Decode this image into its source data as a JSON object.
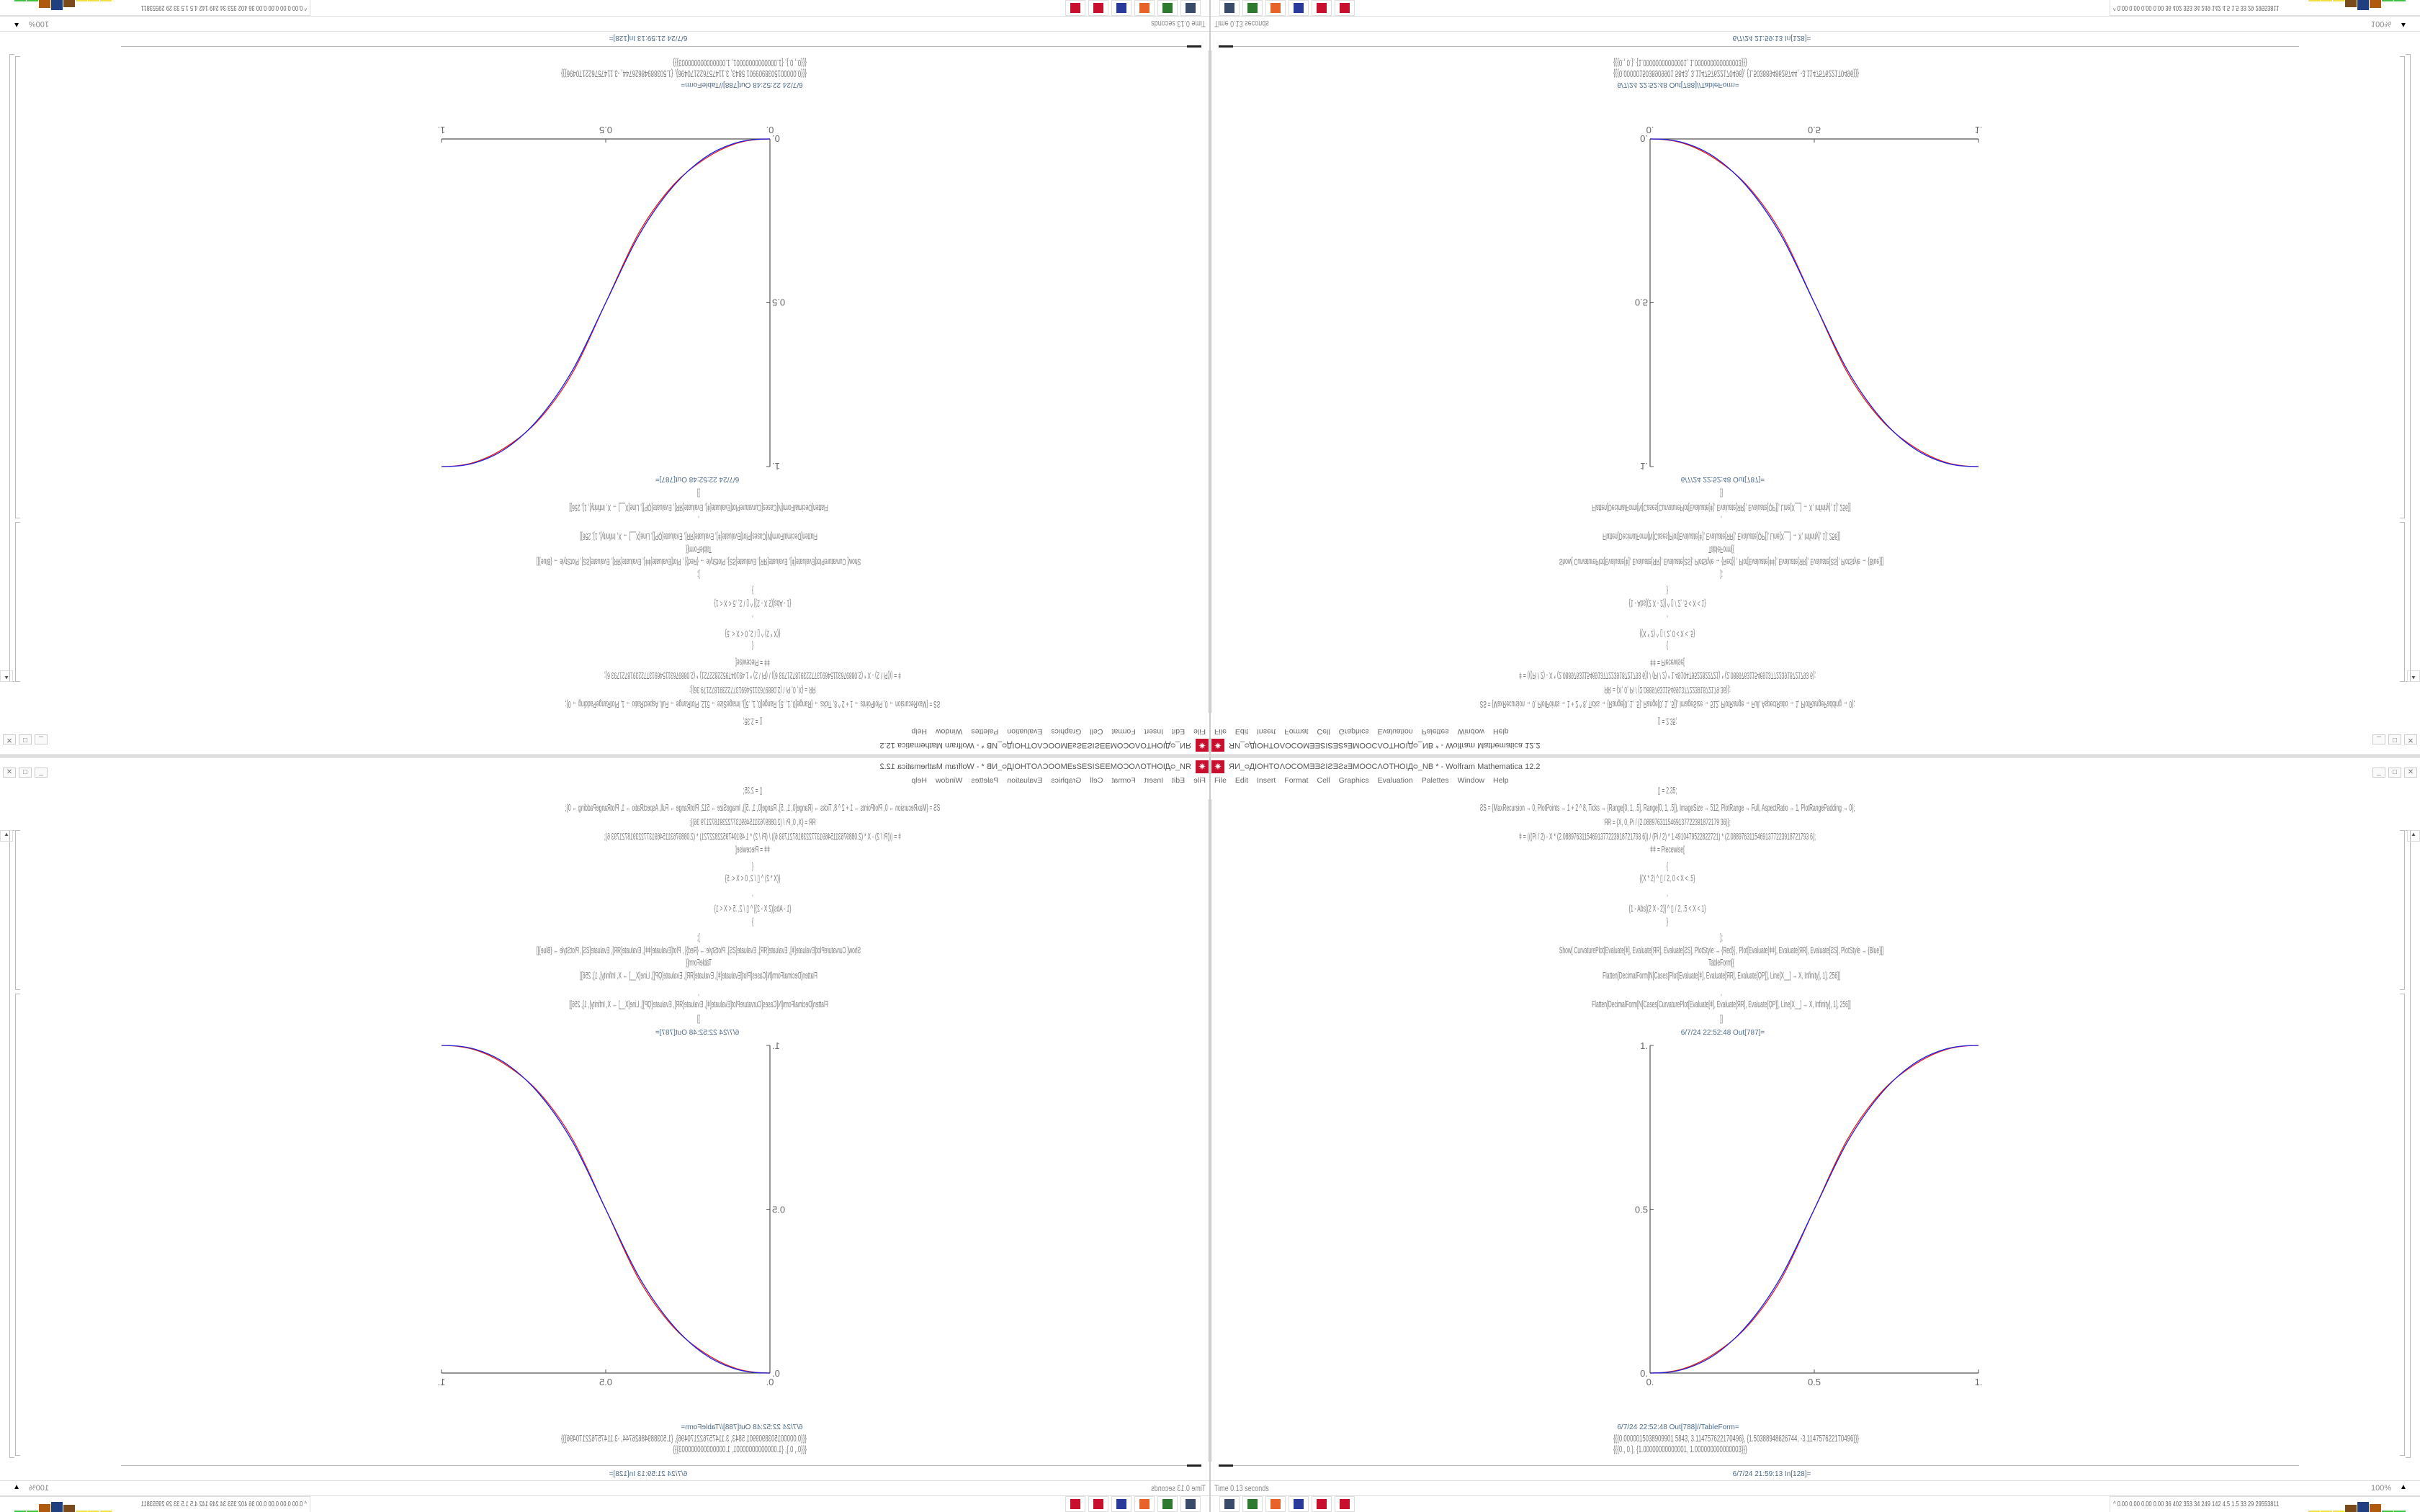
{
  "window": {
    "title": "ЯИ_ᴑДIOHTOΛOCOMƎƎƧIƧƎƧƨƎMOOCΛOTHOIДᴑ_NB * - Wolfram Mathematica 12.2",
    "icon": "mathematica-icon",
    "controls": {
      "minimize": "_",
      "maximize": "□",
      "close": "✕"
    }
  },
  "menu": [
    "File",
    "Edit",
    "Insert",
    "Format",
    "Cell",
    "Graphics",
    "Evaluation",
    "Palettes",
    "Window",
    "Help"
  ],
  "code_lines": [
    "⁠▯ = 2.35;",
    "ƧS = {MaxRecursion → 0, PlotPoints → 1 + 2 ^ 8, Ticks → {Range[0, 1, .5], Range[0, 1, .5]}, ImageSize → 512, PlotRange → Full, AspectRatio → 1, PlotRangePadding → 0};",
    "ЯR = {X, 0, Pi / (2.0889763115469137722391872179 36)};",
    "ǂ = (((Pi / 2) - X * (2.08897631154691377223918721793 6)) / (Pi / 2) * 1.4910479522822721) * (2.08897631154691377223918721793 6);",
    "ǂǂ = Piecewise[",
    "{",
    "{(X * 2) ^ ▯ / 2, 0 < X < .5}",
    ",",
    "{1 - Abs[(2 X - 2)] ^ ▯ / 2, .5 < X < 1}",
    "}",
    "];",
    "Show[   CurvaturePlot[Evaluate[ǂ], Evaluate[ЯR], Evaluate[ƧS], PlotStyle → {Red}]   ,   Plot[Evaluate[ǂǂ], Evaluate[ЯR], Evaluate[ƧS],  PlotStyle → {Blue}]]",
    "TableForm[{",
    "Flatten[DecimalForm[N[Cases[Plot[Evaluate[ǂ], Evaluate[ЯR], Evaluate[ϘP]], Line[X__] → X, Infinity], 1], 256]]",
    ",",
    "Flatten[DecimalForm[N[Cases[CurvaturePlot[Evaluate[ǂ], Evaluate[ЯR], Evaluate[ϘP]], Line[X__] → X, Infinity], 1], 256]]",
    "}]"
  ],
  "out_label_plot": "6/7/24 22:52:48 Out[787]=",
  "out_label_table": "6/7/24 22:52:48 Out[788]//TableForm=",
  "table_output": [
    "{{{0.0000015038909901 5843, 3.114757622170496}, {1.50388948626744, -3.114757622170496}}}",
    "{{{0., 0.}, {1.00000000000001, 1.000000000000003}}}"
  ],
  "in_label": "6/7/24 21:59:13 In[128]=",
  "status": {
    "time": "Time 0.13 seconds",
    "zoom": "100%"
  },
  "taskbar": {
    "icons": [
      {
        "name": "monitor-icon",
        "color": "#3a4a6a"
      },
      {
        "name": "terminal-icon",
        "color": "#2f7a2f"
      },
      {
        "name": "firefox-icon",
        "color": "#e8632a"
      },
      {
        "name": "save-icon",
        "color": "#2a3a9a"
      },
      {
        "name": "mathematica-icon",
        "color": "#c8102e"
      },
      {
        "name": "mathematica-icon",
        "color": "#c8102e"
      }
    ],
    "tray_text": "^  0.00 0.00 0.00 0.00  36  402  353  34  249  142  4.5  1.5  33  29  29553811",
    "tray_bars": [
      {
        "color": "#f0e040",
        "level": 0.1
      },
      {
        "color": "#f0e040",
        "level": 0.1
      },
      {
        "color": "#f0e040",
        "level": 0.1
      },
      {
        "color": "#7a4a1a",
        "level": 0.6
      },
      {
        "color": "#1f3f80",
        "level": 0.9
      },
      {
        "color": "#b05a10",
        "level": 0.7
      },
      {
        "color": "#40c040",
        "level": 0.1
      },
      {
        "color": "#40c040",
        "level": 0.1
      }
    ]
  },
  "chart_data": {
    "type": "line",
    "xlim": [
      0,
      1
    ],
    "ylim": [
      0,
      1
    ],
    "x_ticks": [
      "0.",
      "0.5",
      "1."
    ],
    "y_ticks": [
      "0.",
      "0.5",
      "1."
    ],
    "grid": false,
    "x": [
      0,
      0.1,
      0.2,
      0.3,
      0.4,
      0.5,
      0.6,
      0.7,
      0.8,
      0.9,
      1
    ],
    "series": [
      {
        "color": "#e02020",
        "values": [
          0,
          0.013,
          0.062,
          0.147,
          0.288,
          0.5,
          0.712,
          0.853,
          0.938,
          0.987,
          1
        ]
      },
      {
        "color": "#2020e0",
        "values": [
          0,
          0.011,
          0.058,
          0.151,
          0.296,
          0.5,
          0.704,
          0.849,
          0.942,
          0.989,
          1
        ]
      }
    ]
  }
}
